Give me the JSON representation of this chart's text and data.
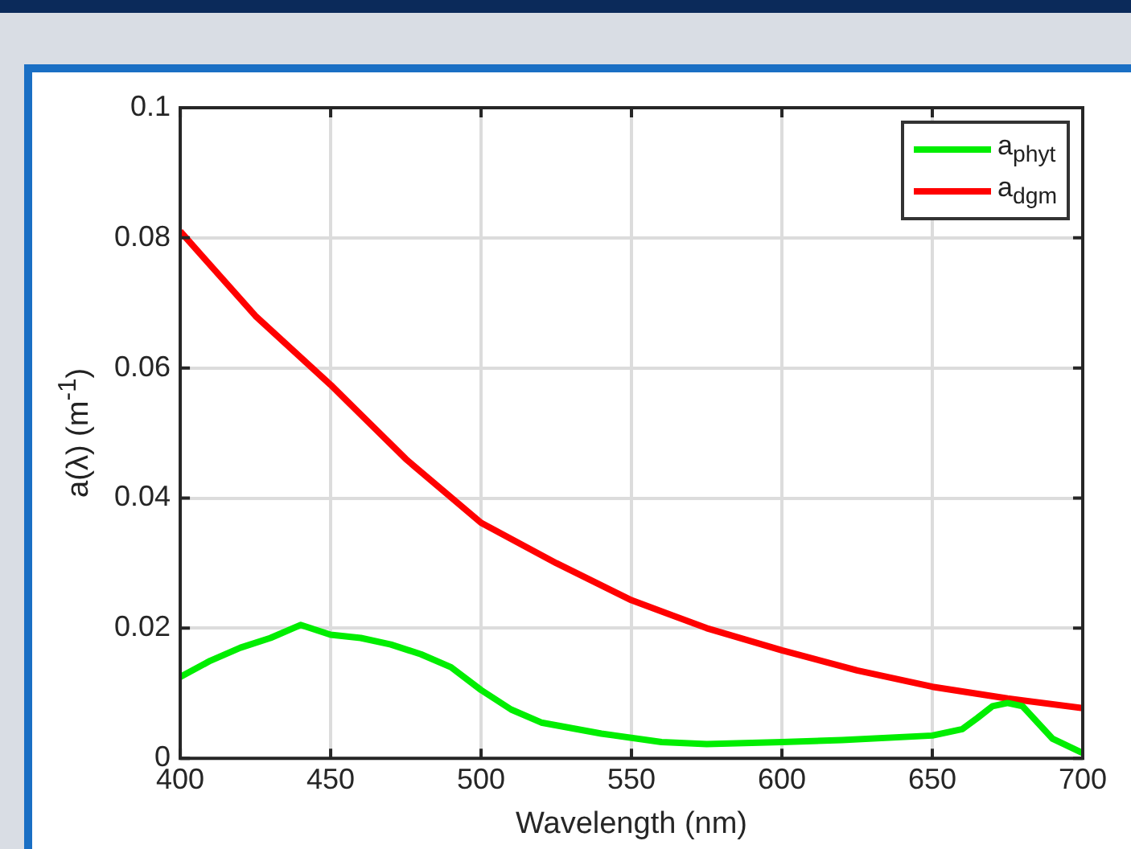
{
  "chart_data": {
    "type": "line",
    "xlabel": "Wavelength (nm)",
    "ylabel": "a(λ) (m$^{-1}$)",
    "xlim": [
      400,
      700
    ],
    "xticks": [
      400,
      450,
      500,
      550,
      600,
      650,
      700
    ],
    "ylim": [
      0,
      0.1
    ],
    "yticks": [
      0,
      0.02,
      0.04,
      0.06,
      0.08,
      0.1
    ],
    "grid": true,
    "legend": "top right",
    "marker": "none",
    "line_style": "solid",
    "series": [
      {
        "name": "a$_{phyt}$",
        "color": "#00ee00",
        "x": [
          400,
          410,
          420,
          430,
          440,
          450,
          460,
          470,
          480,
          490,
          500,
          510,
          520,
          540,
          560,
          575,
          600,
          620,
          650,
          660,
          665,
          670,
          675,
          680,
          685,
          690,
          700
        ],
        "values": [
          0.0125,
          0.015,
          0.017,
          0.0185,
          0.0205,
          0.019,
          0.0185,
          0.0175,
          0.016,
          0.014,
          0.0105,
          0.0075,
          0.0055,
          0.0038,
          0.0025,
          0.0022,
          0.0025,
          0.0028,
          0.0035,
          0.0045,
          0.0062,
          0.008,
          0.0085,
          0.008,
          0.0055,
          0.003,
          0.0008
        ]
      },
      {
        "name": "a$_{dgm}$",
        "color": "#ff0000",
        "x": [
          400,
          425,
          450,
          475,
          500,
          525,
          550,
          575,
          600,
          625,
          650,
          675,
          700
        ],
        "values": [
          0.081,
          0.068,
          0.0574,
          0.046,
          0.0362,
          0.03,
          0.0243,
          0.02,
          0.0166,
          0.0135,
          0.011,
          0.0092,
          0.0077
        ]
      }
    ]
  }
}
